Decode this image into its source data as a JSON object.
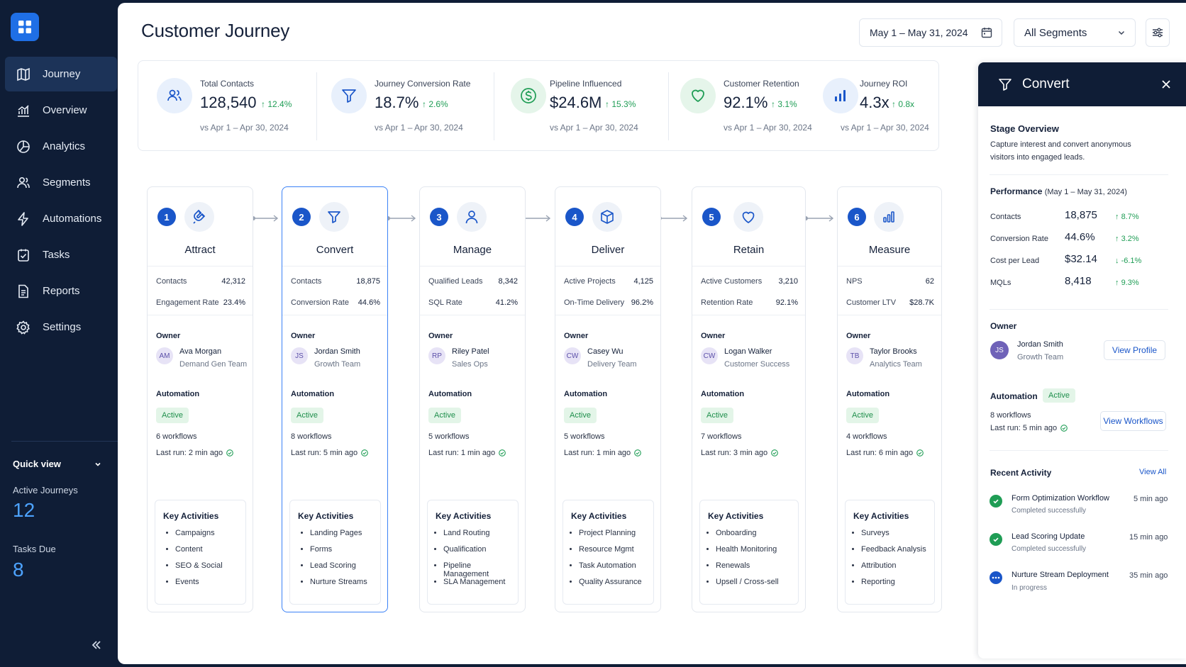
{
  "nav": {
    "items": [
      {
        "label": "Journey",
        "icon": "map-icon"
      },
      {
        "label": "Overview",
        "icon": "bar-chart-icon"
      },
      {
        "label": "Analytics",
        "icon": "pie-chart-icon"
      },
      {
        "label": "Segments",
        "icon": "users-icon"
      },
      {
        "label": "Automations",
        "icon": "bolt-icon"
      },
      {
        "label": "Tasks",
        "icon": "checklist-icon"
      },
      {
        "label": "Reports",
        "icon": "document-icon"
      },
      {
        "label": "Settings",
        "icon": "gear-icon"
      }
    ],
    "active": "Journey"
  },
  "quick_view": {
    "title": "Quick view",
    "active_journeys_label": "Active Journeys",
    "active_journeys_value": "12",
    "tasks_due_label": "Tasks Due",
    "tasks_due_value": "8"
  },
  "header": {
    "title": "Customer Journey",
    "date_range": "May 1 – May 31, 2024",
    "segment": "All Segments"
  },
  "kpis": [
    {
      "label": "Total Contacts",
      "value": "128,540",
      "delta": "12.4%",
      "sub": "vs Apr 1 – Apr 30, 2024",
      "icon": "users-icon"
    },
    {
      "label": "Journey Conversion Rate",
      "value": "18.7%",
      "delta": "2.6%",
      "sub": "vs Apr 1 – Apr 30, 2024",
      "icon": "funnel-icon"
    },
    {
      "label": "Pipeline Influenced",
      "value": "$24.6M",
      "delta": "15.3%",
      "sub": "vs Apr 1 – Apr 30, 2024",
      "icon": "dollar-icon"
    },
    {
      "label": "Customer Retention",
      "value": "92.1%",
      "delta": "3.1%",
      "sub": "vs Apr 1 – Apr 30, 2024",
      "icon": "heart-icon"
    },
    {
      "label": "Journey ROI",
      "value": "4.3x",
      "delta": "0.8x",
      "sub": "vs Apr 1 – Apr 30, 2024",
      "icon": "bar-chart-icon"
    }
  ],
  "stages": [
    {
      "num": "1",
      "title": "Attract",
      "icon": "magnet-icon",
      "metrics": [
        {
          "label": "Contacts",
          "value": "42,312"
        },
        {
          "label": "Engagement Rate",
          "value": "23.4%"
        }
      ],
      "owner_label": "Owner",
      "owner": {
        "initials": "AM",
        "name": "Ava Morgan",
        "team": "Demand Gen Team"
      },
      "automation_label": "Automation",
      "status": "Active",
      "workflows": "6 workflows",
      "last_run": "Last run: 2 min ago",
      "activities_title": "Key Activities",
      "activities": [
        "Campaigns",
        "Content",
        "SEO & Social",
        "Events"
      ]
    },
    {
      "num": "2",
      "title": "Convert",
      "icon": "funnel-icon",
      "metrics": [
        {
          "label": "Contacts",
          "value": "18,875"
        },
        {
          "label": "Conversion Rate",
          "value": "44.6%"
        }
      ],
      "owner_label": "Owner",
      "owner": {
        "initials": "JS",
        "name": "Jordan Smith",
        "team": "Growth Team"
      },
      "automation_label": "Automation",
      "status": "Active",
      "workflows": "8 workflows",
      "last_run": "Last run: 5 min ago",
      "activities_title": "Key Activities",
      "activities": [
        "Landing Pages",
        "Forms",
        "Lead Scoring",
        "Nurture Streams"
      ]
    },
    {
      "num": "3",
      "title": "Manage",
      "icon": "user-icon",
      "metrics": [
        {
          "label": "Qualified Leads",
          "value": "8,342"
        },
        {
          "label": "SQL Rate",
          "value": "41.2%"
        }
      ],
      "owner_label": "Owner",
      "owner": {
        "initials": "RP",
        "name": "Riley Patel",
        "team": "Sales Ops"
      },
      "automation_label": "Automation",
      "status": "Active",
      "workflows": "5 workflows",
      "last_run": "Last run: 1 min ago",
      "activities_title": "Key Activities",
      "activities": [
        "Land Routing",
        "Qualification",
        "Pipeline Management",
        "SLA Management"
      ]
    },
    {
      "num": "4",
      "title": "Deliver",
      "icon": "box-icon",
      "metrics": [
        {
          "label": "Active Projects",
          "value": "4,125"
        },
        {
          "label": "On-Time Delivery",
          "value": "96.2%"
        }
      ],
      "owner_label": "Owner",
      "owner": {
        "initials": "CW",
        "name": "Casey Wu",
        "team": "Delivery Team"
      },
      "automation_label": "Automation",
      "status": "Active",
      "workflows": "5 workflows",
      "last_run": "Last run: 1 min ago",
      "activities_title": "Key Activities",
      "activities": [
        "Project Planning",
        "Resource Mgmt",
        "Task Automation",
        "Quality Assurance"
      ]
    },
    {
      "num": "5",
      "title": "Retain",
      "icon": "heart-icon",
      "metrics": [
        {
          "label": "Active Customers",
          "value": "3,210"
        },
        {
          "label": "Retention Rate",
          "value": "92.1%"
        }
      ],
      "owner_label": "Owner",
      "owner": {
        "initials": "CW",
        "name": "Logan Walker",
        "team": "Customer Success"
      },
      "automation_label": "Automation",
      "status": "Active",
      "workflows": "7 workflows",
      "last_run": "Last run: 3 min ago",
      "activities_title": "Key Activities",
      "activities": [
        "Onboarding",
        "Health Monitoring",
        "Renewals",
        "Upsell / Cross-sell"
      ]
    },
    {
      "num": "6",
      "title": "Measure",
      "icon": "bar-chart-icon",
      "metrics": [
        {
          "label": "NPS",
          "value": "62"
        },
        {
          "label": "Customer LTV",
          "value": "$28.7K"
        }
      ],
      "owner_label": "Owner",
      "owner": {
        "initials": "TB",
        "name": "Taylor Brooks",
        "team": "Analytics Team"
      },
      "automation_label": "Automation",
      "status": "Active",
      "workflows": "4 workflows",
      "last_run": "Last run: 6 min ago",
      "activities_title": "Key Activities",
      "activities": [
        "Surveys",
        "Feedback Analysis",
        "Attribution",
        "Reporting"
      ]
    }
  ],
  "panel": {
    "title": "Convert",
    "overview_title": "Stage Overview",
    "overview_line1": "Capture interest and convert anonymous",
    "overview_line2": "visitors into engaged leads.",
    "performance_title": "Performance",
    "performance_range": "(May 1 – May 31, 2024)",
    "performance": [
      {
        "label": "Contacts",
        "value": "18,875",
        "delta": "8.7%",
        "dir": "up"
      },
      {
        "label": "Conversion Rate",
        "value": "44.6%",
        "delta": "3.2%",
        "dir": "up"
      },
      {
        "label": "Cost per Lead",
        "value": "$32.14",
        "delta": "-6.1%",
        "dir": "down"
      },
      {
        "label": "MQLs",
        "value": "8,418",
        "delta": "9.3%",
        "dir": "up"
      }
    ],
    "owner_title": "Owner",
    "owner": {
      "initials": "JS",
      "name": "Jordan Smith",
      "team": "Growth Team"
    },
    "view_profile": "View Profile",
    "automation_title": "Automation",
    "automation_status": "Active",
    "workflows": "8 workflows",
    "last_run": "Last run: 5 min ago",
    "view_workflows": "View Workflows",
    "recent_title": "Recent Activity",
    "view_all": "View All",
    "activity": [
      {
        "title": "Form Optimization Workflow",
        "status": "Completed successfully",
        "time": "5 min ago",
        "state": "done"
      },
      {
        "title": "Lead Scoring Update",
        "status": "Completed successfully",
        "time": "15 min ago",
        "state": "done"
      },
      {
        "title": "Nurture Stream Deployment",
        "status": "In progress",
        "time": "35 min ago",
        "state": "progress"
      }
    ]
  },
  "colors": {
    "primary": "#1a56c9",
    "accent": "#3b82f6",
    "success": "#1f9d55",
    "danger": "#d14343",
    "navy": "#0f1d36"
  }
}
